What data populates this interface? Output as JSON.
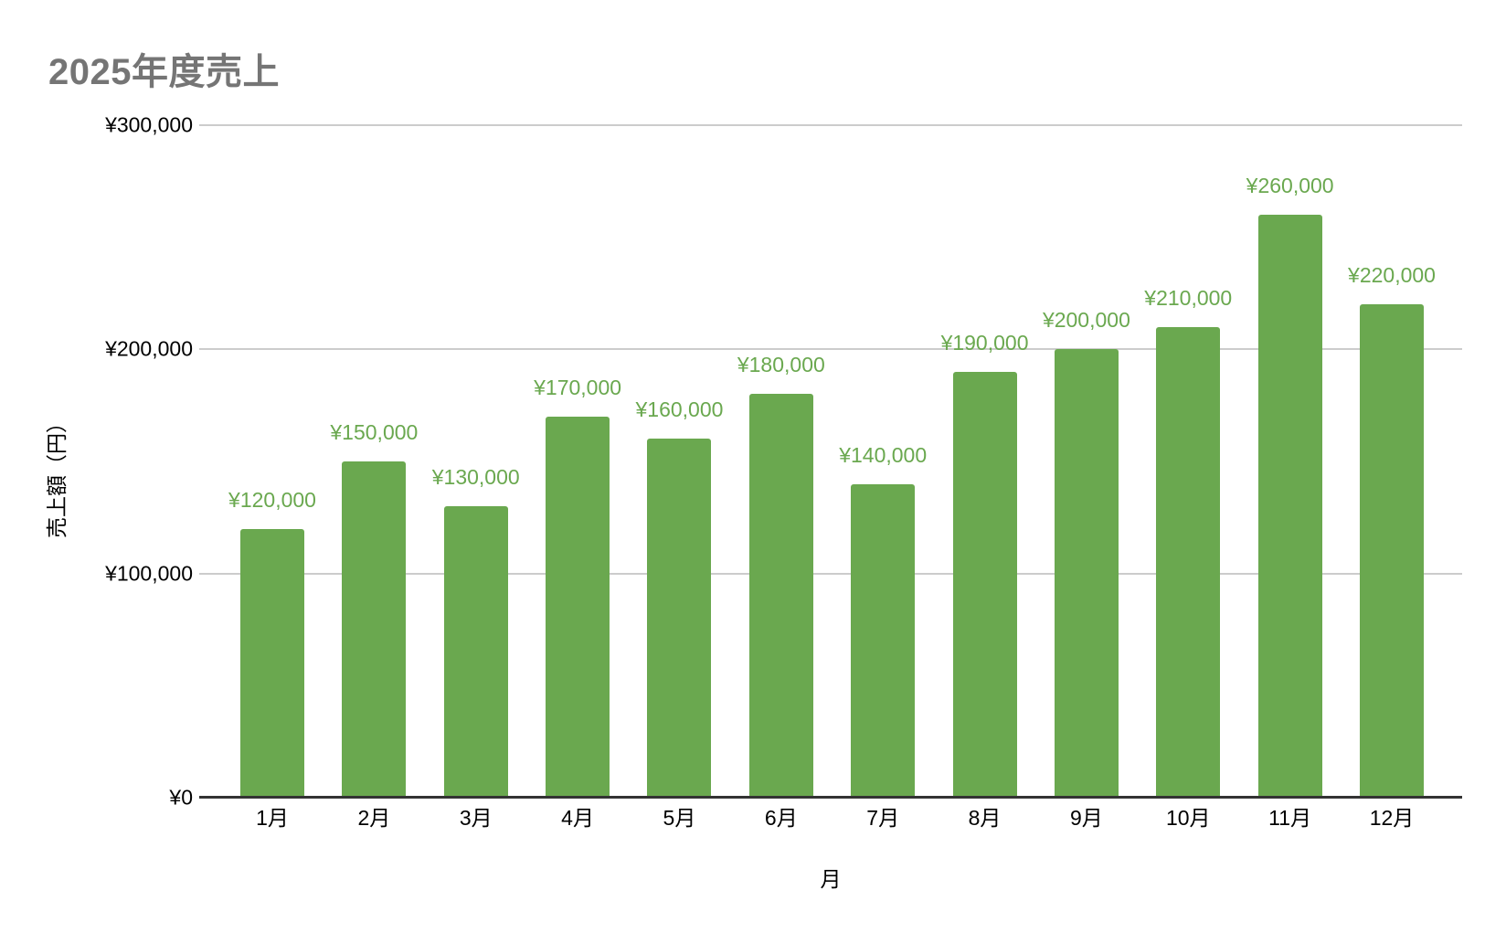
{
  "chart_data": {
    "type": "bar",
    "title": "2025年度売上",
    "xlabel": "月",
    "ylabel": "売上額（円）",
    "categories": [
      "1月",
      "2月",
      "3月",
      "4月",
      "5月",
      "6月",
      "7月",
      "8月",
      "9月",
      "10月",
      "11月",
      "12月"
    ],
    "values": [
      120000,
      150000,
      130000,
      170000,
      160000,
      180000,
      140000,
      190000,
      200000,
      210000,
      260000,
      220000
    ],
    "data_labels": [
      "¥120,000",
      "¥150,000",
      "¥130,000",
      "¥170,000",
      "¥160,000",
      "¥180,000",
      "¥140,000",
      "¥190,000",
      "¥200,000",
      "¥210,000",
      "¥260,000",
      "¥220,000"
    ],
    "ylim": [
      0,
      300000
    ],
    "ytick_interval": 100000,
    "yticks": [
      {
        "value": 0,
        "label": "¥0"
      },
      {
        "value": 100000,
        "label": "¥100,000"
      },
      {
        "value": 200000,
        "label": "¥200,000"
      },
      {
        "value": 300000,
        "label": "¥300,000"
      }
    ],
    "grid": true,
    "legend_position": "none",
    "colors": {
      "bar": "#6aa84f",
      "data_label": "#6aa84f",
      "title": "#757575",
      "gridline": "#cccccc",
      "axis_line": "#333333",
      "tick_text": "#000000",
      "background": "#ffffff"
    }
  }
}
